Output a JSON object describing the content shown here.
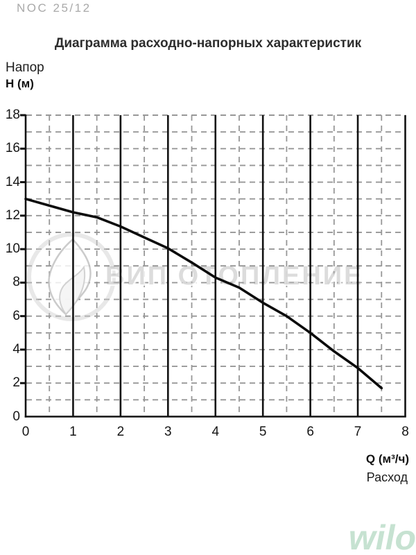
{
  "header": {
    "model": "NOC 25/12",
    "title": "Диаграмма расходно-напорных характеристик"
  },
  "y_axis": {
    "label_line1": "Напор",
    "label_line2": "H (м)"
  },
  "x_axis": {
    "label_line1": "Q (м³/ч)",
    "label_line2": "Расход"
  },
  "watermark": {
    "text": "ВИП ОТОПЛЕНИЕ",
    "logo": "flame-icon"
  },
  "brand": {
    "logo_text": "wilo",
    "color": "#c6e2d1"
  },
  "colors": {
    "curve": "#0b0b0b",
    "solid_grid": "#121212",
    "dashed_grid": "#979797",
    "axis": "#121212",
    "tick_text": "#161616",
    "title_text": "#2d2d2d",
    "model_text": "#a9a9a9",
    "watermark_gray": "#919191",
    "wilo_green": "#c6e2d1"
  },
  "chart_data": {
    "type": "line",
    "title": "Диаграмма расходно-напорных характеристик",
    "xlabel": "Q (м³/ч) Расход",
    "ylabel": "Напор H (м)",
    "xlim": [
      0,
      8
    ],
    "ylim": [
      0,
      18
    ],
    "x_ticks": [
      0,
      1,
      2,
      3,
      4,
      5,
      6,
      7,
      8
    ],
    "y_ticks": [
      0,
      2,
      4,
      6,
      8,
      10,
      12,
      14,
      16,
      18
    ],
    "grid": {
      "horizontal_dashed_step": 1,
      "vertical_dashed_step": 0.5,
      "vertical_solid_step": 1,
      "legend_position": "none"
    },
    "series": [
      {
        "name": "pump-curve",
        "points": [
          [
            0,
            13.0
          ],
          [
            0.5,
            12.6
          ],
          [
            1,
            12.2
          ],
          [
            1.5,
            11.9
          ],
          [
            2,
            11.35
          ],
          [
            2.5,
            10.7
          ],
          [
            3,
            10.05
          ],
          [
            3.5,
            9.2
          ],
          [
            4,
            8.3
          ],
          [
            4.5,
            7.7
          ],
          [
            5,
            6.8
          ],
          [
            5.5,
            6.0
          ],
          [
            6,
            5.0
          ],
          [
            6.5,
            3.9
          ],
          [
            7,
            2.9
          ],
          [
            7.5,
            1.7
          ]
        ]
      }
    ]
  }
}
